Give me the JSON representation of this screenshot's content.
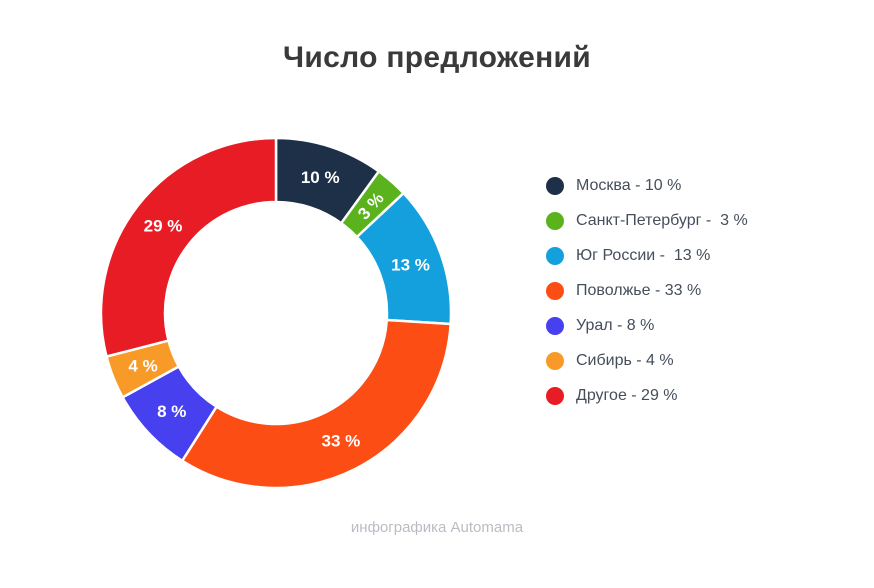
{
  "title": "Число предложений",
  "footer": "инфографика Automama",
  "chart_data": {
    "type": "pie",
    "subtype": "donut",
    "title": "Число предложений",
    "unit": "%",
    "start_angle_deg": 0,
    "direction": "clockwise",
    "hole_ratio": 0.63,
    "legend_position": "right",
    "data_label_color": "#ffffff",
    "slices": [
      {
        "label": "Москва",
        "value": 10,
        "color": "#1e3047",
        "data_label": "10 %",
        "legend_label": "Москва - 10 %"
      },
      {
        "label": "Санкт-Петербург",
        "value": 3,
        "color": "#5ab31d",
        "data_label": "3 %",
        "legend_label": "Санкт-Петербург -  3 %"
      },
      {
        "label": "Юг России",
        "value": 13,
        "color": "#14a0dc",
        "data_label": "13 %",
        "legend_label": "Юг России -  13 %"
      },
      {
        "label": "Поволжье",
        "value": 33,
        "color": "#fc4d14",
        "data_label": "33 %",
        "legend_label": "Поволжье - 33 %"
      },
      {
        "label": "Урал",
        "value": 8,
        "color": "#4640ee",
        "data_label": "8 %",
        "legend_label": "Урал - 8 %"
      },
      {
        "label": "Сибирь",
        "value": 4,
        "color": "#f89a28",
        "data_label": "4 %",
        "legend_label": "Сибирь - 4 %"
      },
      {
        "label": "Другое",
        "value": 29,
        "color": "#e71c24",
        "data_label": "29 %",
        "legend_label": "Другое - 29 %"
      }
    ]
  }
}
